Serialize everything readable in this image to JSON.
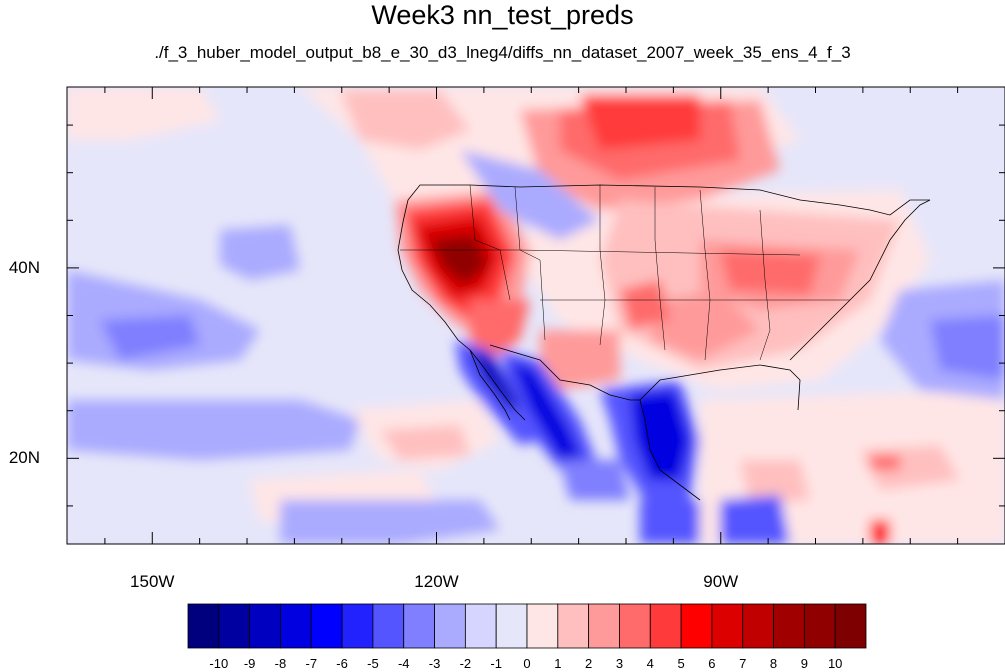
{
  "title": "Week3 nn_test_preds",
  "subtitle": "./f_3_huber_model_output_b8_e_30_d3_lneg4/diffs_nn_dataset_2007_week_35_ens_4_f_3",
  "lat_labels": [
    {
      "text": "40N",
      "lat": 40
    },
    {
      "text": "20N",
      "lat": 20
    }
  ],
  "lon_labels": [
    {
      "text": "150W",
      "lon": -150
    },
    {
      "text": "120W",
      "lon": -120
    },
    {
      "text": "90W",
      "lon": -90
    }
  ],
  "map": {
    "lon_range": [
      -159,
      -60
    ],
    "lat_range": [
      11,
      59
    ],
    "field": "temperature difference anomaly"
  },
  "colorbar": {
    "levels": [
      -10,
      -9,
      -8,
      -7,
      -6,
      -5,
      -4,
      -3,
      -2,
      -1,
      0,
      1,
      2,
      3,
      4,
      5,
      6,
      7,
      8,
      9,
      10
    ],
    "level_labels": [
      "-10",
      "-9",
      "-8",
      "-7",
      "-6",
      "-5",
      "-4",
      "-3",
      "-2",
      "-1",
      "0",
      "1",
      "2",
      "3",
      "4",
      "5",
      "6",
      "7",
      "8",
      "9",
      "10"
    ],
    "colors": [
      "#00007f",
      "#0000a0",
      "#0000c0",
      "#0000e0",
      "#0000ff",
      "#2222ff",
      "#5555ff",
      "#7f7fff",
      "#aaaaff",
      "#d5d5ff",
      "#e6e6fa",
      "#ffe6e6",
      "#ffbfbf",
      "#ff9a9a",
      "#ff6a6a",
      "#ff3a3a",
      "#ff0000",
      "#dd0000",
      "#c00000",
      "#a00000",
      "#900000",
      "#7f0000"
    ]
  }
}
